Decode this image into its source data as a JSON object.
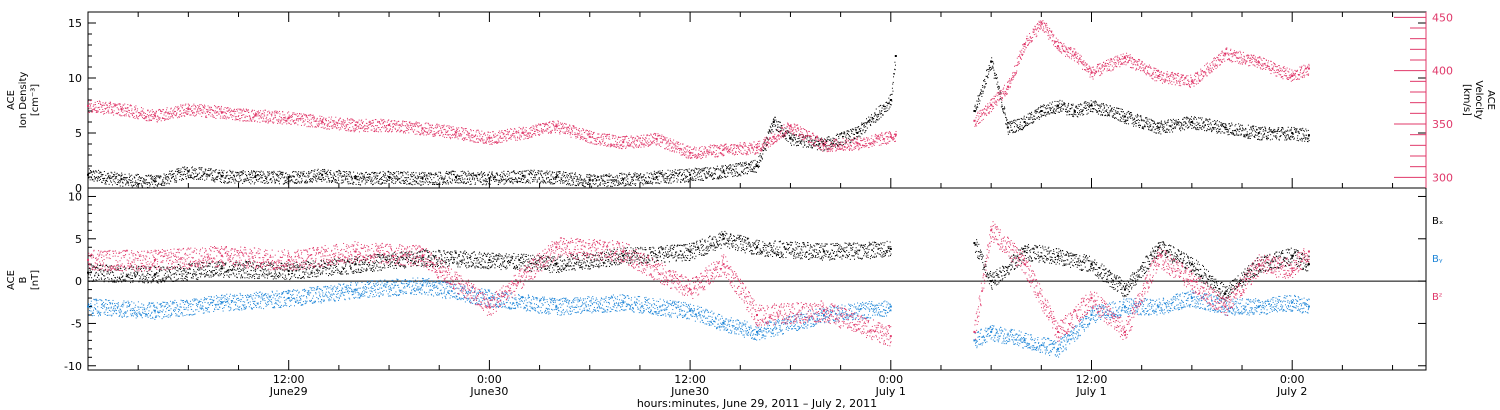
{
  "colors": {
    "black": "#000000",
    "pink": "#e0386a",
    "blue": "#1f86d8"
  },
  "top_panel": {
    "ylabel_lines": [
      "ACE",
      "Ion Density",
      "[cm⁻³]"
    ],
    "right_ylabel_lines": [
      "ACE",
      "Velocity",
      "[km/s]"
    ]
  },
  "bottom_panel": {
    "ylabel_lines": [
      "ACE",
      "B",
      "[nT]"
    ],
    "legend": [
      "Bₓ",
      "Bᵧ",
      "Bᶻ"
    ]
  },
  "x_ticks": [
    {
      "hour": 12,
      "line1": "12:00",
      "line2": "June29"
    },
    {
      "hour": 24,
      "line1": "0:00",
      "line2": "June30"
    },
    {
      "hour": 36,
      "line1": "12:00",
      "line2": "June30"
    },
    {
      "hour": 48,
      "line1": "0:00",
      "line2": "July 1"
    },
    {
      "hour": 60,
      "line1": "12:00",
      "line2": "July 1"
    },
    {
      "hour": 72,
      "line1": "0:00",
      "line2": "July 2"
    }
  ],
  "xlabel": "hours:minutes, June 29, 2011 – July  2, 2011",
  "chart_data": [
    {
      "type": "scatter",
      "title": "",
      "xlabel": "hours:minutes, June 29, 2011 – July  2, 2011",
      "x_unit": "hours since 2011-06-29 00:00",
      "xlim": [
        0,
        80
      ],
      "ylabel": "ACE Ion Density [cm^-3]",
      "ylim": [
        0,
        16
      ],
      "yticks": [
        0,
        5,
        10,
        15
      ],
      "y2label": "ACE Velocity [km/s]",
      "y2lim": [
        290,
        455
      ],
      "y2ticks": [
        300,
        350,
        400,
        450
      ],
      "series": [
        {
          "name": "Ion Density",
          "axis": "left",
          "color": "#000000",
          "x": [
            0,
            2,
            4,
            6,
            8,
            10,
            12,
            14,
            16,
            18,
            20,
            22,
            24,
            26,
            28,
            30,
            32,
            34,
            36,
            38,
            40,
            41,
            42,
            44,
            46,
            48,
            48.3,
            53,
            54,
            55,
            56,
            57,
            58,
            59,
            60,
            62,
            64,
            66,
            68,
            70,
            72,
            73
          ],
          "y": [
            1.2,
            0.8,
            0.6,
            1.5,
            1.1,
            1.0,
            1.0,
            1.2,
            0.9,
            1.0,
            0.9,
            1.0,
            0.9,
            1.1,
            1.0,
            0.7,
            0.8,
            1.0,
            1.2,
            1.5,
            2.0,
            6.0,
            4.5,
            4.0,
            5.0,
            8.0,
            12.0,
            7.0,
            11.5,
            5.5,
            6.0,
            7.0,
            7.5,
            7.0,
            7.5,
            6.5,
            5.5,
            6.0,
            5.5,
            5.0,
            5.0,
            4.8
          ]
        },
        {
          "name": "Velocity",
          "axis": "right",
          "color": "#e0386a",
          "x": [
            0,
            2,
            4,
            6,
            8,
            10,
            12,
            14,
            16,
            18,
            20,
            22,
            24,
            26,
            28,
            30,
            32,
            34,
            36,
            38,
            40,
            41,
            42,
            44,
            46,
            48,
            48.3,
            53,
            54,
            55,
            56,
            57,
            58,
            59,
            60,
            62,
            64,
            66,
            68,
            70,
            72,
            73
          ],
          "y": [
            367,
            364,
            358,
            364,
            361,
            358,
            356,
            352,
            349,
            349,
            346,
            342,
            337,
            342,
            348,
            338,
            333,
            336,
            323,
            326,
            328,
            338,
            348,
            330,
            332,
            338,
            340,
            353,
            368,
            385,
            425,
            445,
            423,
            415,
            398,
            412,
            395,
            390,
            416,
            408,
            395,
            402
          ]
        }
      ]
    },
    {
      "type": "scatter",
      "title": "",
      "xlabel": "hours:minutes, June 29, 2011 – July  2, 2011",
      "x_unit": "hours since 2011-06-29 00:00",
      "xlim": [
        0,
        80
      ],
      "ylabel": "ACE B [nT]",
      "ylim": [
        -10.5,
        11
      ],
      "yticks": [
        -10,
        -5,
        0,
        5,
        10
      ],
      "series": [
        {
          "name": "Bx",
          "color": "#000000",
          "x": [
            0,
            4,
            8,
            12,
            16,
            20,
            24,
            28,
            32,
            36,
            38,
            40,
            44,
            48,
            53,
            54,
            56,
            58,
            60,
            62,
            64,
            66,
            68,
            70,
            72,
            73
          ],
          "y": [
            1.0,
            0.8,
            1.5,
            1.2,
            2.0,
            2.8,
            2.5,
            2.0,
            3.0,
            3.5,
            5.0,
            4.0,
            3.5,
            3.8,
            4.5,
            0.0,
            3.5,
            3.0,
            2.0,
            -1.0,
            4.0,
            2.0,
            -1.5,
            2.0,
            3.0,
            2.0
          ]
        },
        {
          "name": "By",
          "color": "#1f86d8",
          "x": [
            0,
            4,
            8,
            12,
            16,
            20,
            24,
            28,
            32,
            36,
            38,
            40,
            44,
            48,
            53,
            54,
            56,
            58,
            60,
            62,
            64,
            66,
            68,
            70,
            72,
            73
          ],
          "y": [
            -3.0,
            -3.5,
            -2.5,
            -2.0,
            -1.0,
            -0.5,
            -2.0,
            -3.0,
            -2.5,
            -3.5,
            -5.0,
            -6.0,
            -4.0,
            -3.0,
            -7.0,
            -6.0,
            -7.0,
            -8.0,
            -4.0,
            -3.0,
            -3.0,
            -2.0,
            -3.0,
            -3.0,
            -2.5,
            -3.0
          ]
        },
        {
          "name": "Bz",
          "color": "#e0386a",
          "x": [
            0,
            4,
            8,
            12,
            16,
            20,
            24,
            28,
            32,
            36,
            38,
            40,
            44,
            48,
            53,
            54,
            56,
            58,
            60,
            62,
            64,
            66,
            68,
            70,
            72,
            73
          ],
          "y": [
            2.5,
            2.5,
            3.0,
            2.5,
            3.5,
            3.0,
            -3.0,
            4.0,
            3.5,
            -1.0,
            2.0,
            -4.0,
            -3.5,
            -6.5,
            -6.0,
            6.0,
            2.0,
            -6.0,
            -2.0,
            -6.0,
            3.0,
            0.0,
            -3.0,
            2.0,
            1.5,
            3.5
          ]
        }
      ]
    }
  ]
}
